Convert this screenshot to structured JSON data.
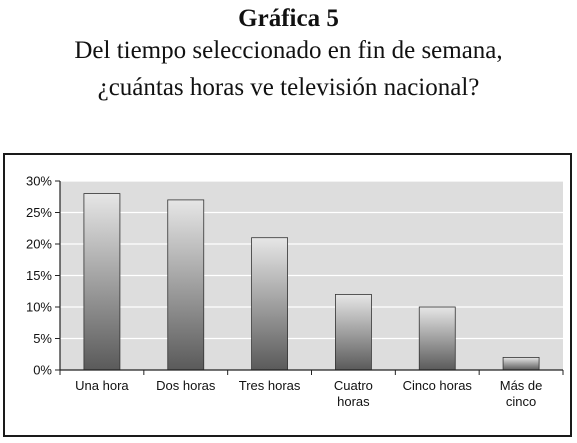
{
  "header": {
    "title": "Gráfica 5",
    "subtitle_line1": "Del tiempo seleccionado en fin de semana,",
    "subtitle_line2": "¿cuántas horas ve televisión nacional?"
  },
  "chart_data": {
    "type": "bar",
    "title": "Gráfica 5",
    "subtitle": "Del tiempo seleccionado en fin de semana, ¿cuántas horas ve televisión nacional?",
    "categories": [
      [
        "Una hora"
      ],
      [
        "Dos horas"
      ],
      [
        "Tres horas"
      ],
      [
        "Cuatro",
        "horas"
      ],
      [
        "Cinco horas"
      ],
      [
        "Más de",
        "cinco"
      ]
    ],
    "values": [
      28,
      27,
      21,
      12,
      10,
      2
    ],
    "unit": "%",
    "xlabel": "",
    "ylabel": "",
    "ylim": [
      0,
      30
    ],
    "yticks": [
      "0%",
      "5%",
      "10%",
      "15%",
      "20%",
      "25%",
      "30%"
    ],
    "grid": "horizontal",
    "legend": "none",
    "colors": {
      "plot_background": "#dddddd",
      "bar_light": "#e6e6e6",
      "bar_dark": "#5a5a5a",
      "gridline": "#ffffff",
      "axis": "#222222"
    }
  }
}
